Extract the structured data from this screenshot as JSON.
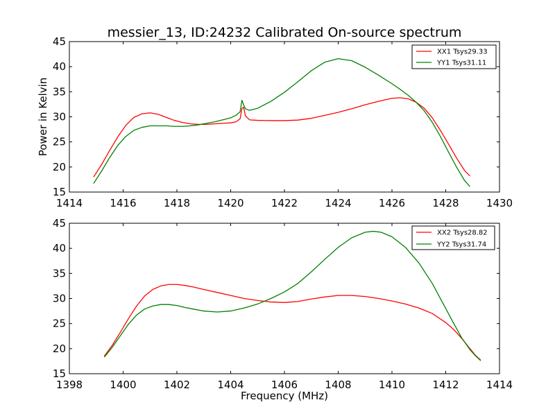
{
  "chart_data": [
    {
      "type": "line",
      "title": "messier_13, ID:24232 Calibrated On-source spectrum",
      "xlabel": "",
      "ylabel": "Power in Kelvin",
      "xlim": [
        1414,
        1430
      ],
      "ylim": [
        15,
        45
      ],
      "xticks": [
        1414,
        1416,
        1418,
        1420,
        1422,
        1424,
        1426,
        1428,
        1430
      ],
      "yticks": [
        15,
        20,
        25,
        30,
        35,
        40,
        45
      ],
      "legend_position": "upper right",
      "series": [
        {
          "name": "XX1 Tsys29.33",
          "color": "#ff0000",
          "x": [
            1414.9,
            1415.2,
            1415.5,
            1415.8,
            1416.1,
            1416.4,
            1416.7,
            1417.0,
            1417.3,
            1417.6,
            1417.9,
            1418.2,
            1418.5,
            1418.8,
            1419.1,
            1419.4,
            1419.7,
            1420.0,
            1420.2,
            1420.35,
            1420.42,
            1420.48,
            1420.55,
            1420.7,
            1421.0,
            1421.5,
            1422.0,
            1422.5,
            1423.0,
            1423.5,
            1424.0,
            1424.5,
            1425.0,
            1425.5,
            1426.0,
            1426.3,
            1426.6,
            1426.9,
            1427.2,
            1427.5,
            1427.8,
            1428.1,
            1428.4,
            1428.7,
            1428.9
          ],
          "y": [
            18.0,
            20.5,
            23.3,
            26.0,
            28.3,
            29.9,
            30.6,
            30.8,
            30.5,
            29.9,
            29.3,
            28.9,
            28.6,
            28.5,
            28.5,
            28.6,
            28.7,
            28.8,
            29.0,
            29.6,
            31.7,
            31.9,
            30.2,
            29.4,
            29.3,
            29.25,
            29.25,
            29.35,
            29.7,
            30.3,
            30.9,
            31.6,
            32.4,
            33.1,
            33.7,
            33.8,
            33.6,
            32.9,
            31.7,
            29.8,
            27.3,
            24.6,
            21.8,
            19.3,
            18.2
          ]
        },
        {
          "name": "YY1 Tsys31.11",
          "color": "#008000",
          "x": [
            1414.9,
            1415.2,
            1415.5,
            1415.8,
            1416.1,
            1416.4,
            1416.7,
            1417.0,
            1417.3,
            1417.6,
            1417.9,
            1418.2,
            1418.5,
            1418.8,
            1419.1,
            1419.4,
            1419.7,
            1420.0,
            1420.2,
            1420.35,
            1420.42,
            1420.48,
            1420.55,
            1420.7,
            1421.0,
            1421.5,
            1422.0,
            1422.5,
            1423.0,
            1423.5,
            1424.0,
            1424.5,
            1425.0,
            1425.5,
            1426.0,
            1426.3,
            1426.6,
            1426.9,
            1427.2,
            1427.5,
            1427.8,
            1428.1,
            1428.4,
            1428.7,
            1428.9
          ],
          "y": [
            16.7,
            19.2,
            21.9,
            24.3,
            26.1,
            27.3,
            27.9,
            28.2,
            28.2,
            28.2,
            28.1,
            28.1,
            28.2,
            28.4,
            28.7,
            29.0,
            29.4,
            29.8,
            30.3,
            31.0,
            33.3,
            32.4,
            31.6,
            31.3,
            31.7,
            33.1,
            34.9,
            37.0,
            39.2,
            40.9,
            41.6,
            41.2,
            39.9,
            38.3,
            36.6,
            35.5,
            34.3,
            32.9,
            31.2,
            28.9,
            26.1,
            23.0,
            20.0,
            17.3,
            16.1
          ]
        }
      ]
    },
    {
      "type": "line",
      "title": "",
      "xlabel": "Frequency (MHz)",
      "ylabel": "",
      "xlim": [
        1398,
        1414
      ],
      "ylim": [
        15,
        45
      ],
      "xticks": [
        1398,
        1400,
        1402,
        1404,
        1406,
        1408,
        1410,
        1412,
        1414
      ],
      "yticks": [
        15,
        20,
        25,
        30,
        35,
        40,
        45
      ],
      "legend_position": "upper right",
      "series": [
        {
          "name": "XX2 Tsys28.82",
          "color": "#ff0000",
          "x": [
            1399.3,
            1399.6,
            1399.9,
            1400.2,
            1400.5,
            1400.8,
            1401.1,
            1401.4,
            1401.7,
            1402.0,
            1402.3,
            1402.6,
            1403.0,
            1403.5,
            1404.0,
            1404.5,
            1405.0,
            1405.5,
            1406.0,
            1406.5,
            1407.0,
            1407.5,
            1408.0,
            1408.5,
            1409.0,
            1409.5,
            1410.0,
            1410.5,
            1411.0,
            1411.5,
            1412.0,
            1412.3,
            1412.6,
            1412.9,
            1413.1,
            1413.3
          ],
          "y": [
            18.5,
            20.7,
            23.3,
            26.0,
            28.5,
            30.5,
            31.8,
            32.5,
            32.8,
            32.8,
            32.6,
            32.3,
            31.8,
            31.2,
            30.6,
            30.0,
            29.6,
            29.3,
            29.2,
            29.4,
            29.9,
            30.3,
            30.6,
            30.6,
            30.4,
            30.0,
            29.5,
            28.9,
            28.1,
            27.0,
            25.2,
            23.8,
            22.0,
            20.0,
            18.7,
            17.7
          ]
        },
        {
          "name": "YY2 Tsys31.74",
          "color": "#008000",
          "x": [
            1399.3,
            1399.6,
            1399.9,
            1400.2,
            1400.5,
            1400.8,
            1401.1,
            1401.4,
            1401.7,
            1402.0,
            1402.3,
            1402.6,
            1403.0,
            1403.5,
            1404.0,
            1404.5,
            1405.0,
            1405.5,
            1406.0,
            1406.5,
            1407.0,
            1407.5,
            1408.0,
            1408.5,
            1409.0,
            1409.3,
            1409.6,
            1410.0,
            1410.5,
            1411.0,
            1411.5,
            1412.0,
            1412.3,
            1412.6,
            1412.9,
            1413.1,
            1413.3
          ],
          "y": [
            18.3,
            20.3,
            22.6,
            24.9,
            26.7,
            27.9,
            28.5,
            28.8,
            28.8,
            28.6,
            28.2,
            27.9,
            27.5,
            27.3,
            27.5,
            28.1,
            28.9,
            30.0,
            31.3,
            33.0,
            35.3,
            37.8,
            40.2,
            42.1,
            43.2,
            43.4,
            43.2,
            42.3,
            40.2,
            37.1,
            33.0,
            28.0,
            25.0,
            22.1,
            19.8,
            18.6,
            17.6
          ]
        }
      ]
    }
  ]
}
